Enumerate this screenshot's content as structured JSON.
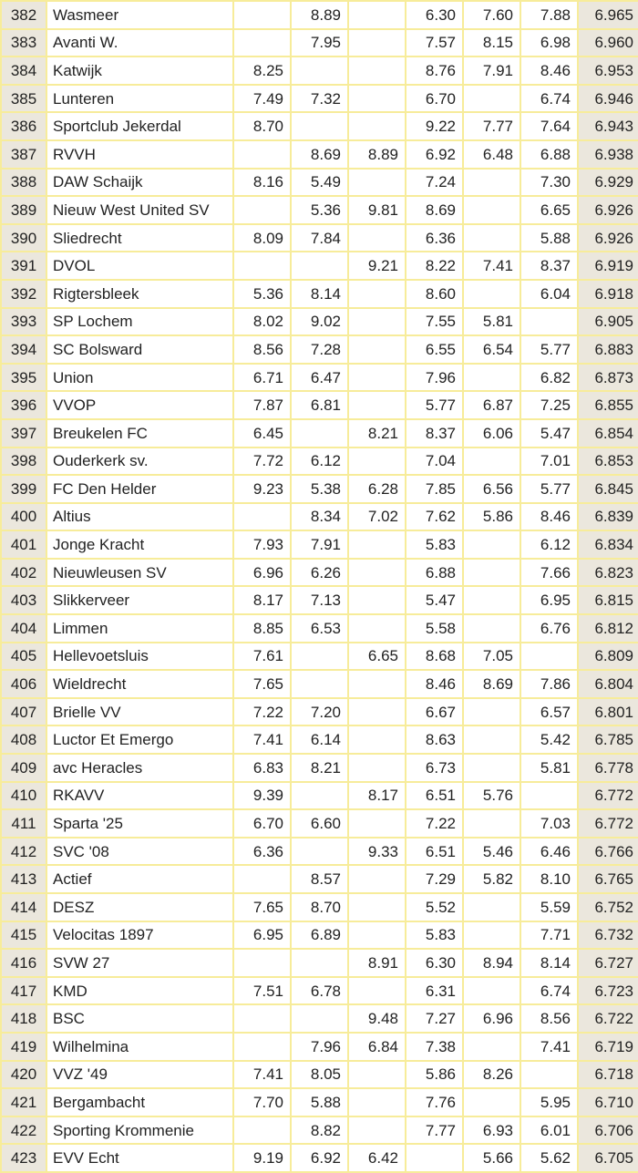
{
  "rows": [
    {
      "rank": "382",
      "club": "Wasmeer",
      "scores": [
        "",
        "8.89",
        "",
        "6.30",
        "7.60",
        "7.88"
      ],
      "total": "6.965"
    },
    {
      "rank": "383",
      "club": "Avanti W.",
      "scores": [
        "",
        "7.95",
        "",
        "7.57",
        "8.15",
        "6.98"
      ],
      "total": "6.960"
    },
    {
      "rank": "384",
      "club": "Katwijk",
      "scores": [
        "8.25",
        "",
        "",
        "8.76",
        "7.91",
        "8.46"
      ],
      "total": "6.953"
    },
    {
      "rank": "385",
      "club": "Lunteren",
      "scores": [
        "7.49",
        "7.32",
        "",
        "6.70",
        "",
        "6.74"
      ],
      "total": "6.946"
    },
    {
      "rank": "386",
      "club": "Sportclub Jekerdal",
      "scores": [
        "8.70",
        "",
        "",
        "9.22",
        "7.77",
        "7.64"
      ],
      "total": "6.943"
    },
    {
      "rank": "387",
      "club": "RVVH",
      "scores": [
        "",
        "8.69",
        "8.89",
        "6.92",
        "6.48",
        "6.88"
      ],
      "total": "6.938"
    },
    {
      "rank": "388",
      "club": "DAW Schaijk",
      "scores": [
        "8.16",
        "5.49",
        "",
        "7.24",
        "",
        "7.30"
      ],
      "total": "6.929"
    },
    {
      "rank": "389",
      "club": "Nieuw West United SV",
      "scores": [
        "",
        "5.36",
        "9.81",
        "8.69",
        "",
        "6.65"
      ],
      "total": "6.926"
    },
    {
      "rank": "390",
      "club": "Sliedrecht",
      "scores": [
        "8.09",
        "7.84",
        "",
        "6.36",
        "",
        "5.88"
      ],
      "total": "6.926"
    },
    {
      "rank": "391",
      "club": "DVOL",
      "scores": [
        "",
        "",
        "9.21",
        "8.22",
        "7.41",
        "8.37"
      ],
      "total": "6.919"
    },
    {
      "rank": "392",
      "club": "Rigtersbleek",
      "scores": [
        "5.36",
        "8.14",
        "",
        "8.60",
        "",
        "6.04"
      ],
      "total": "6.918"
    },
    {
      "rank": "393",
      "club": "SP Lochem",
      "scores": [
        "8.02",
        "9.02",
        "",
        "7.55",
        "5.81",
        ""
      ],
      "total": "6.905"
    },
    {
      "rank": "394",
      "club": "SC Bolsward",
      "scores": [
        "8.56",
        "7.28",
        "",
        "6.55",
        "6.54",
        "5.77"
      ],
      "total": "6.883"
    },
    {
      "rank": "395",
      "club": "Union",
      "scores": [
        "6.71",
        "6.47",
        "",
        "7.96",
        "",
        "6.82"
      ],
      "total": "6.873"
    },
    {
      "rank": "396",
      "club": "VVOP",
      "scores": [
        "7.87",
        "6.81",
        "",
        "5.77",
        "6.87",
        "7.25"
      ],
      "total": "6.855"
    },
    {
      "rank": "397",
      "club": "Breukelen FC",
      "scores": [
        "6.45",
        "",
        "8.21",
        "8.37",
        "6.06",
        "5.47"
      ],
      "total": "6.854"
    },
    {
      "rank": "398",
      "club": "Ouderkerk sv.",
      "scores": [
        "7.72",
        "6.12",
        "",
        "7.04",
        "",
        "7.01"
      ],
      "total": "6.853"
    },
    {
      "rank": "399",
      "club": "FC Den Helder",
      "scores": [
        "9.23",
        "5.38",
        "6.28",
        "7.85",
        "6.56",
        "5.77"
      ],
      "total": "6.845"
    },
    {
      "rank": "400",
      "club": "Altius",
      "scores": [
        "",
        "8.34",
        "7.02",
        "7.62",
        "5.86",
        "8.46"
      ],
      "total": "6.839"
    },
    {
      "rank": "401",
      "club": "Jonge Kracht",
      "scores": [
        "7.93",
        "7.91",
        "",
        "5.83",
        "",
        "6.12"
      ],
      "total": "6.834"
    },
    {
      "rank": "402",
      "club": "Nieuwleusen SV",
      "scores": [
        "6.96",
        "6.26",
        "",
        "6.88",
        "",
        "7.66"
      ],
      "total": "6.823"
    },
    {
      "rank": "403",
      "club": "Slikkerveer",
      "scores": [
        "8.17",
        "7.13",
        "",
        "5.47",
        "",
        "6.95"
      ],
      "total": "6.815"
    },
    {
      "rank": "404",
      "club": "Limmen",
      "scores": [
        "8.85",
        "6.53",
        "",
        "5.58",
        "",
        "6.76"
      ],
      "total": "6.812"
    },
    {
      "rank": "405",
      "club": "Hellevoetsluis",
      "scores": [
        "7.61",
        "",
        "6.65",
        "8.68",
        "7.05",
        ""
      ],
      "total": "6.809"
    },
    {
      "rank": "406",
      "club": "Wieldrecht",
      "scores": [
        "7.65",
        "",
        "",
        "8.46",
        "8.69",
        "7.86"
      ],
      "total": "6.804"
    },
    {
      "rank": "407",
      "club": "Brielle VV",
      "scores": [
        "7.22",
        "7.20",
        "",
        "6.67",
        "",
        "6.57"
      ],
      "total": "6.801"
    },
    {
      "rank": "408",
      "club": "Luctor Et Emergo",
      "scores": [
        "7.41",
        "6.14",
        "",
        "8.63",
        "",
        "5.42"
      ],
      "total": "6.785"
    },
    {
      "rank": "409",
      "club": "avc Heracles",
      "scores": [
        "6.83",
        "8.21",
        "",
        "6.73",
        "",
        "5.81"
      ],
      "total": "6.778"
    },
    {
      "rank": "410",
      "club": "RKAVV",
      "scores": [
        "9.39",
        "",
        "8.17",
        "6.51",
        "5.76",
        ""
      ],
      "total": "6.772"
    },
    {
      "rank": "411",
      "club": "Sparta '25",
      "scores": [
        "6.70",
        "6.60",
        "",
        "7.22",
        "",
        "7.03"
      ],
      "total": "6.772"
    },
    {
      "rank": "412",
      "club": "SVC '08",
      "scores": [
        "6.36",
        "",
        "9.33",
        "6.51",
        "5.46",
        "6.46"
      ],
      "total": "6.766"
    },
    {
      "rank": "413",
      "club": "Actief",
      "scores": [
        "",
        "8.57",
        "",
        "7.29",
        "5.82",
        "8.10"
      ],
      "total": "6.765"
    },
    {
      "rank": "414",
      "club": "DESZ",
      "scores": [
        "7.65",
        "8.70",
        "",
        "5.52",
        "",
        "5.59"
      ],
      "total": "6.752"
    },
    {
      "rank": "415",
      "club": "Velocitas 1897",
      "scores": [
        "6.95",
        "6.89",
        "",
        "5.83",
        "",
        "7.71"
      ],
      "total": "6.732"
    },
    {
      "rank": "416",
      "club": "SVW 27",
      "scores": [
        "",
        "",
        "8.91",
        "6.30",
        "8.94",
        "8.14"
      ],
      "total": "6.727"
    },
    {
      "rank": "417",
      "club": "KMD",
      "scores": [
        "7.51",
        "6.78",
        "",
        "6.31",
        "",
        "6.74"
      ],
      "total": "6.723"
    },
    {
      "rank": "418",
      "club": "BSC",
      "scores": [
        "",
        "",
        "9.48",
        "7.27",
        "6.96",
        "8.56"
      ],
      "total": "6.722"
    },
    {
      "rank": "419",
      "club": "Wilhelmina",
      "scores": [
        "",
        "7.96",
        "6.84",
        "7.38",
        "",
        "7.41"
      ],
      "total": "6.719"
    },
    {
      "rank": "420",
      "club": "VVZ '49",
      "scores": [
        "7.41",
        "8.05",
        "",
        "5.86",
        "8.26",
        ""
      ],
      "total": "6.718"
    },
    {
      "rank": "421",
      "club": "Bergambacht",
      "scores": [
        "7.70",
        "5.88",
        "",
        "7.76",
        "",
        "5.95"
      ],
      "total": "6.710"
    },
    {
      "rank": "422",
      "club": "Sporting Krommenie",
      "scores": [
        "",
        "8.82",
        "",
        "7.77",
        "6.93",
        "6.01"
      ],
      "total": "6.706"
    },
    {
      "rank": "423",
      "club": "EVV Echt",
      "scores": [
        "9.19",
        "6.92",
        "6.42",
        "",
        "5.66",
        "5.62"
      ],
      "total": "6.705"
    }
  ]
}
